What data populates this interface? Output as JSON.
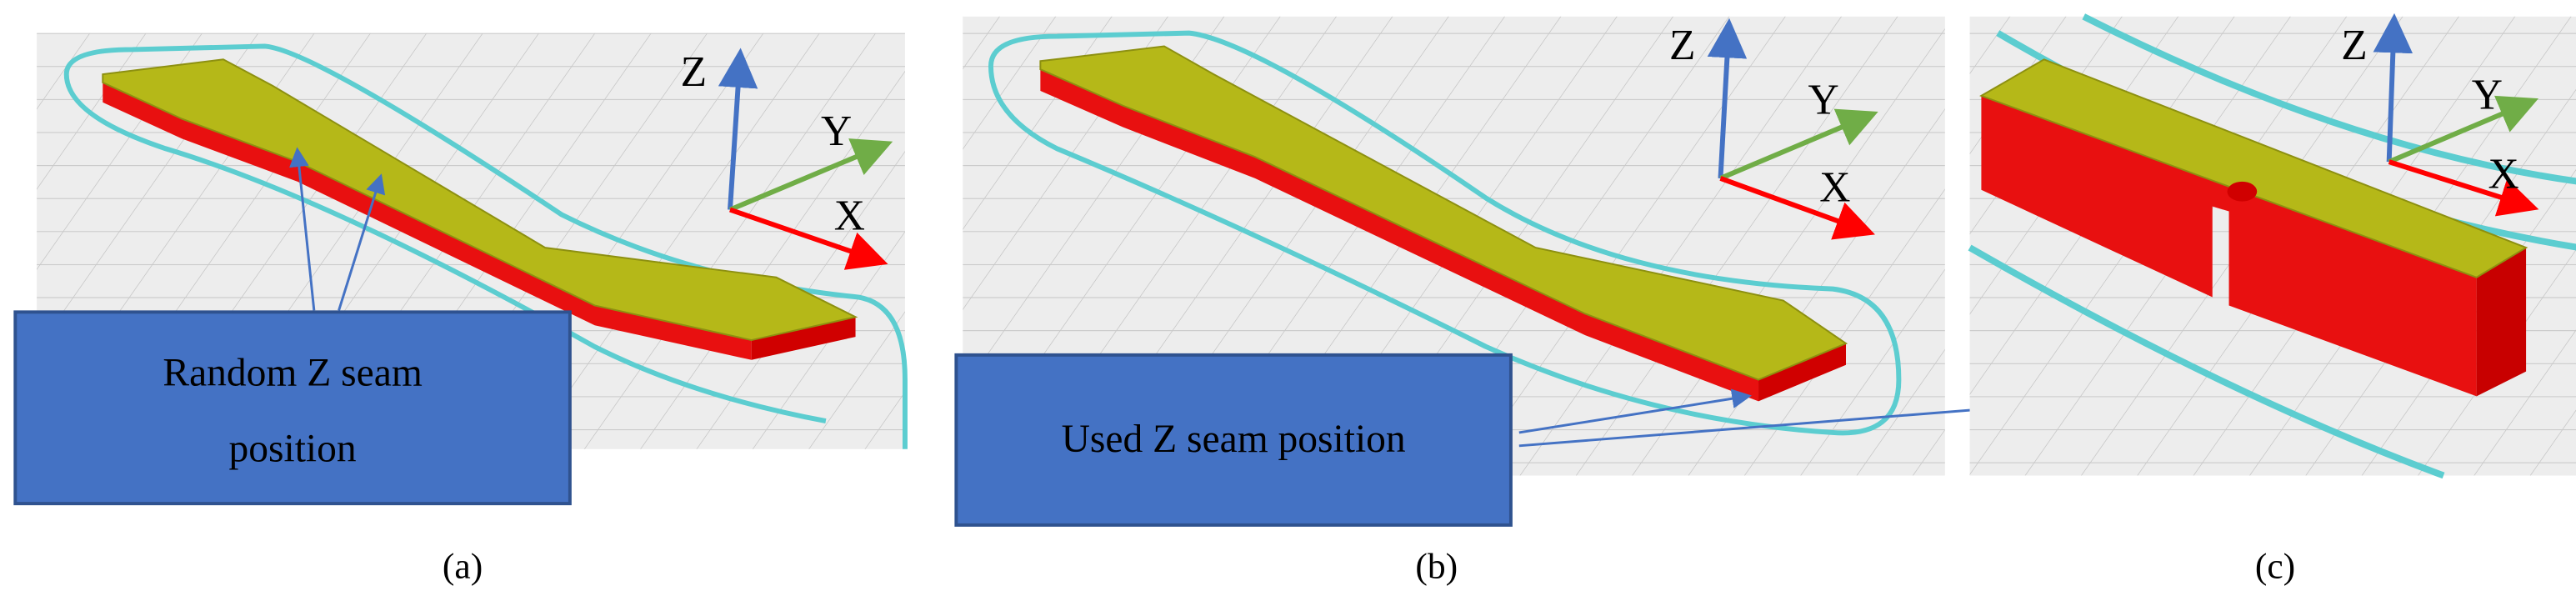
{
  "panels": [
    {
      "label": "(a)",
      "axes": {
        "x": "X",
        "y": "Y",
        "z": "Z"
      },
      "callout": [
        "Random Z seam",
        "position"
      ]
    },
    {
      "label": "(b)",
      "axes": {
        "x": "X",
        "y": "Y",
        "z": "Z"
      },
      "callout": [
        "Used Z seam position"
      ]
    },
    {
      "label": "(c)",
      "axes": {
        "x": "X",
        "y": "Y",
        "z": "Z"
      }
    }
  ]
}
